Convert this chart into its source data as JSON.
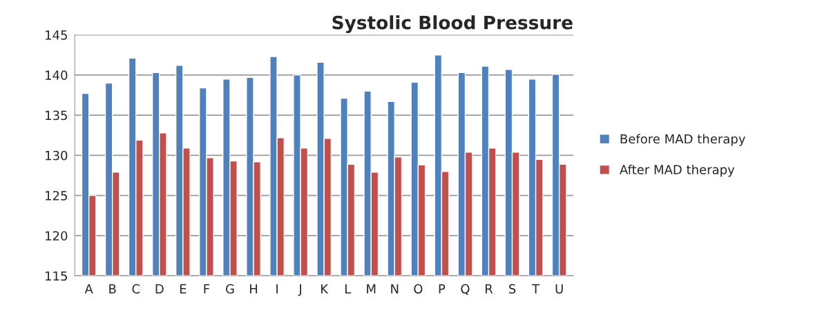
{
  "chart_data": {
    "type": "bar",
    "title": "Systolic Blood Pressure",
    "categories": [
      "A",
      "B",
      "C",
      "D",
      "E",
      "F",
      "G",
      "H",
      "I",
      "J",
      "K",
      "L",
      "M",
      "N",
      "O",
      "P",
      "Q",
      "R",
      "S",
      "T",
      "U"
    ],
    "series": [
      {
        "name": "Before MAD therapy",
        "color": "#4f81bd",
        "values": [
          137.7,
          139.0,
          142.1,
          140.3,
          141.2,
          138.4,
          139.5,
          139.7,
          142.3,
          140.0,
          141.6,
          137.1,
          138.0,
          136.7,
          139.1,
          142.5,
          140.3,
          141.1,
          140.7,
          139.5,
          140.1
        ]
      },
      {
        "name": "After MAD therapy",
        "color": "#c0504d",
        "values": [
          125.0,
          127.9,
          131.9,
          132.8,
          130.9,
          129.7,
          129.3,
          129.2,
          132.2,
          130.9,
          132.1,
          128.9,
          127.9,
          129.8,
          128.8,
          128.0,
          130.4,
          130.9,
          130.4,
          129.5,
          128.9
        ]
      }
    ],
    "ylim": [
      115,
      145
    ],
    "yticks": [
      115,
      120,
      125,
      130,
      135,
      140,
      145
    ],
    "grid": "y",
    "legend": "right"
  }
}
